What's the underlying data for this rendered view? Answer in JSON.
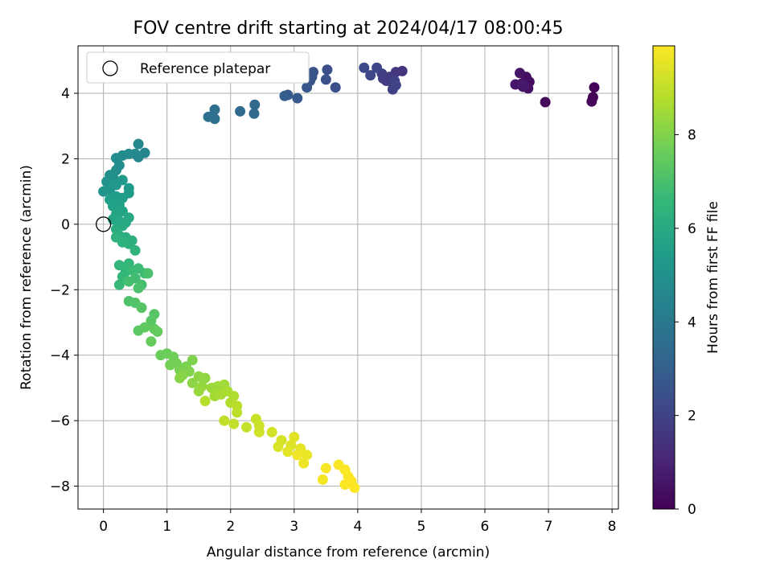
{
  "chart_data": {
    "type": "scatter",
    "title": "FOV centre drift starting at 2024/04/17 08:00:45",
    "xlabel": "Angular distance from reference (arcmin)",
    "ylabel": "Rotation from reference (arcmin)",
    "xlim": [
      -0.4,
      8.1
    ],
    "ylim": [
      -8.7,
      5.45
    ],
    "xticks": [
      0,
      1,
      2,
      3,
      4,
      5,
      6,
      7,
      8
    ],
    "yticks": [
      -8,
      -6,
      -4,
      -2,
      0,
      2,
      4
    ],
    "grid": true,
    "legend": {
      "position": "top-left",
      "entries": [
        "Reference platepar"
      ]
    },
    "reference_point": {
      "x": 0,
      "y": 0,
      "label": "Reference platepar"
    },
    "colorbar": {
      "label": "Hours from first FF file",
      "colormap": "viridis",
      "range": [
        0,
        9.9
      ],
      "ticks": [
        0,
        2,
        4,
        6,
        8
      ]
    },
    "colormap_stops": [
      "#440154",
      "#482878",
      "#3e4989",
      "#31688e",
      "#26828e",
      "#1f9e89",
      "#35b779",
      "#6ece58",
      "#b5de2b",
      "#fde725"
    ],
    "points": [
      [
        7.72,
        4.18,
        0.05
      ],
      [
        7.7,
        3.88,
        0.1
      ],
      [
        7.68,
        3.75,
        0.15
      ],
      [
        6.95,
        3.73,
        0.25
      ],
      [
        6.7,
        4.35,
        0.35
      ],
      [
        6.65,
        4.5,
        0.4
      ],
      [
        6.68,
        4.15,
        0.45
      ],
      [
        6.6,
        4.2,
        0.5
      ],
      [
        6.55,
        4.62,
        0.55
      ],
      [
        6.48,
        4.27,
        0.6
      ],
      [
        6.62,
        4.22,
        0.65
      ],
      [
        6.58,
        4.3,
        0.7
      ],
      [
        4.7,
        4.68,
        1.5
      ],
      [
        4.6,
        4.65,
        1.55
      ],
      [
        4.55,
        4.3,
        1.6
      ],
      [
        4.5,
        4.5,
        1.65
      ],
      [
        4.48,
        4.42,
        1.7
      ],
      [
        4.45,
        4.38,
        1.75
      ],
      [
        4.4,
        4.45,
        1.8
      ],
      [
        4.38,
        4.6,
        1.85
      ],
      [
        4.55,
        4.12,
        1.9
      ],
      [
        4.58,
        4.38,
        1.95
      ],
      [
        4.6,
        4.25,
        2.0
      ],
      [
        4.3,
        4.78,
        2.1
      ],
      [
        4.2,
        4.55,
        2.15
      ],
      [
        4.1,
        4.78,
        2.2
      ],
      [
        3.65,
        4.18,
        2.4
      ],
      [
        3.52,
        4.72,
        2.45
      ],
      [
        3.5,
        4.42,
        2.5
      ],
      [
        3.3,
        4.65,
        2.55
      ],
      [
        3.28,
        4.5,
        2.6
      ],
      [
        3.25,
        4.38,
        2.65
      ],
      [
        3.2,
        4.18,
        2.7
      ],
      [
        3.05,
        3.85,
        2.8
      ],
      [
        2.9,
        3.95,
        2.85
      ],
      [
        2.85,
        3.92,
        2.9
      ],
      [
        2.38,
        3.65,
        3.3
      ],
      [
        2.37,
        3.38,
        3.35
      ],
      [
        2.15,
        3.45,
        3.4
      ],
      [
        1.75,
        3.5,
        3.6
      ],
      [
        1.75,
        3.22,
        3.65
      ],
      [
        1.65,
        3.28,
        3.7
      ],
      [
        0.65,
        2.18,
        4.5
      ],
      [
        0.55,
        2.45,
        4.55
      ],
      [
        0.55,
        2.05,
        4.6
      ],
      [
        0.5,
        2.15,
        4.65
      ],
      [
        0.4,
        2.15,
        4.7
      ],
      [
        0.3,
        2.1,
        4.75
      ],
      [
        0.2,
        2.02,
        4.8
      ],
      [
        0.25,
        1.8,
        4.85
      ],
      [
        0.2,
        1.65,
        4.9
      ],
      [
        0.15,
        1.45,
        4.95
      ],
      [
        0.1,
        1.5,
        5.0
      ],
      [
        0.05,
        1.3,
        5.05
      ],
      [
        0.1,
        1.25,
        5.1
      ],
      [
        0.0,
        1.0,
        5.15
      ],
      [
        0.1,
        1.05,
        5.2
      ],
      [
        0.2,
        1.2,
        5.25
      ],
      [
        0.3,
        1.35,
        5.3
      ],
      [
        0.4,
        1.1,
        5.35
      ],
      [
        0.4,
        0.95,
        5.4
      ],
      [
        0.3,
        0.8,
        5.45
      ],
      [
        0.2,
        0.85,
        5.5
      ],
      [
        0.1,
        0.75,
        5.55
      ],
      [
        0.15,
        0.55,
        5.6
      ],
      [
        0.25,
        0.6,
        5.65
      ],
      [
        0.3,
        0.4,
        5.7
      ],
      [
        0.2,
        0.3,
        5.75
      ],
      [
        0.15,
        0.15,
        5.8
      ],
      [
        0.25,
        0.1,
        5.85
      ],
      [
        0.35,
        0.05,
        5.9
      ],
      [
        0.4,
        0.2,
        5.95
      ],
      [
        0.3,
        -0.05,
        6.0
      ],
      [
        0.2,
        -0.15,
        6.05
      ],
      [
        0.25,
        -0.35,
        6.1
      ],
      [
        0.35,
        -0.4,
        6.15
      ],
      [
        0.4,
        -0.6,
        6.2
      ],
      [
        0.45,
        -0.5,
        6.25
      ],
      [
        0.3,
        -0.55,
        6.3
      ],
      [
        0.2,
        -0.4,
        6.35
      ],
      [
        0.5,
        -0.8,
        6.4
      ],
      [
        0.25,
        -1.25,
        6.45
      ],
      [
        0.4,
        -1.2,
        6.5
      ],
      [
        0.35,
        -1.45,
        6.55
      ],
      [
        0.3,
        -1.6,
        6.6
      ],
      [
        0.25,
        -1.85,
        6.65
      ],
      [
        0.45,
        -1.4,
        6.7
      ],
      [
        0.55,
        -1.35,
        6.75
      ],
      [
        0.65,
        -1.5,
        6.8
      ],
      [
        0.5,
        -1.65,
        6.85
      ],
      [
        0.4,
        -1.75,
        6.9
      ],
      [
        0.6,
        -1.85,
        6.95
      ],
      [
        0.7,
        -1.5,
        7.0
      ],
      [
        0.55,
        -1.95,
        7.05
      ],
      [
        0.4,
        -2.35,
        7.1
      ],
      [
        0.5,
        -2.4,
        7.15
      ],
      [
        0.6,
        -2.55,
        7.2
      ],
      [
        0.8,
        -2.75,
        7.25
      ],
      [
        0.75,
        -2.95,
        7.3
      ],
      [
        0.55,
        -3.25,
        7.35
      ],
      [
        0.65,
        -3.15,
        7.4
      ],
      [
        0.8,
        -3.2,
        7.45
      ],
      [
        0.85,
        -3.28,
        7.5
      ],
      [
        0.75,
        -3.58,
        7.55
      ],
      [
        0.9,
        -4.0,
        7.6
      ],
      [
        1.0,
        -3.95,
        7.65
      ],
      [
        1.1,
        -4.05,
        7.7
      ],
      [
        1.15,
        -4.25,
        7.75
      ],
      [
        1.05,
        -4.3,
        7.8
      ],
      [
        1.2,
        -4.45,
        7.85
      ],
      [
        1.3,
        -4.35,
        7.9
      ],
      [
        1.4,
        -4.15,
        7.95
      ],
      [
        1.35,
        -4.5,
        8.0
      ],
      [
        1.25,
        -4.6,
        8.05
      ],
      [
        1.2,
        -4.7,
        8.1
      ],
      [
        1.4,
        -4.85,
        8.15
      ],
      [
        1.5,
        -4.65,
        8.2
      ],
      [
        1.6,
        -4.7,
        8.25
      ],
      [
        1.55,
        -4.95,
        8.3
      ],
      [
        1.5,
        -5.1,
        8.35
      ],
      [
        1.7,
        -5.0,
        8.4
      ],
      [
        1.8,
        -4.95,
        8.45
      ],
      [
        1.9,
        -4.9,
        8.5
      ],
      [
        1.75,
        -5.25,
        8.55
      ],
      [
        1.85,
        -5.2,
        8.6
      ],
      [
        1.95,
        -5.1,
        8.65
      ],
      [
        2.05,
        -5.25,
        8.7
      ],
      [
        2.0,
        -5.45,
        8.75
      ],
      [
        1.6,
        -5.4,
        8.8
      ],
      [
        2.1,
        -5.55,
        8.85
      ],
      [
        2.1,
        -5.75,
        8.9
      ],
      [
        1.9,
        -6.0,
        8.95
      ],
      [
        2.05,
        -6.1,
        9.0
      ],
      [
        2.25,
        -6.2,
        9.05
      ],
      [
        2.4,
        -5.95,
        9.1
      ],
      [
        2.45,
        -6.15,
        9.15
      ],
      [
        2.45,
        -6.35,
        9.2
      ],
      [
        2.65,
        -6.35,
        9.25
      ],
      [
        2.8,
        -6.6,
        9.3
      ],
      [
        2.75,
        -6.8,
        9.35
      ],
      [
        2.95,
        -6.75,
        9.4
      ],
      [
        3.0,
        -6.5,
        9.45
      ],
      [
        2.9,
        -6.95,
        9.5
      ],
      [
        3.1,
        -6.85,
        9.55
      ],
      [
        3.2,
        -7.05,
        9.6
      ],
      [
        3.15,
        -7.3,
        9.65
      ],
      [
        3.05,
        -7.05,
        9.7
      ],
      [
        3.45,
        -7.8,
        9.75
      ],
      [
        3.5,
        -7.45,
        9.8
      ],
      [
        3.7,
        -7.35,
        9.82
      ],
      [
        3.8,
        -7.5,
        9.84
      ],
      [
        3.85,
        -7.7,
        9.86
      ],
      [
        3.8,
        -7.95,
        9.88
      ],
      [
        3.9,
        -7.85,
        9.9
      ],
      [
        3.95,
        -8.05,
        9.92
      ]
    ]
  }
}
